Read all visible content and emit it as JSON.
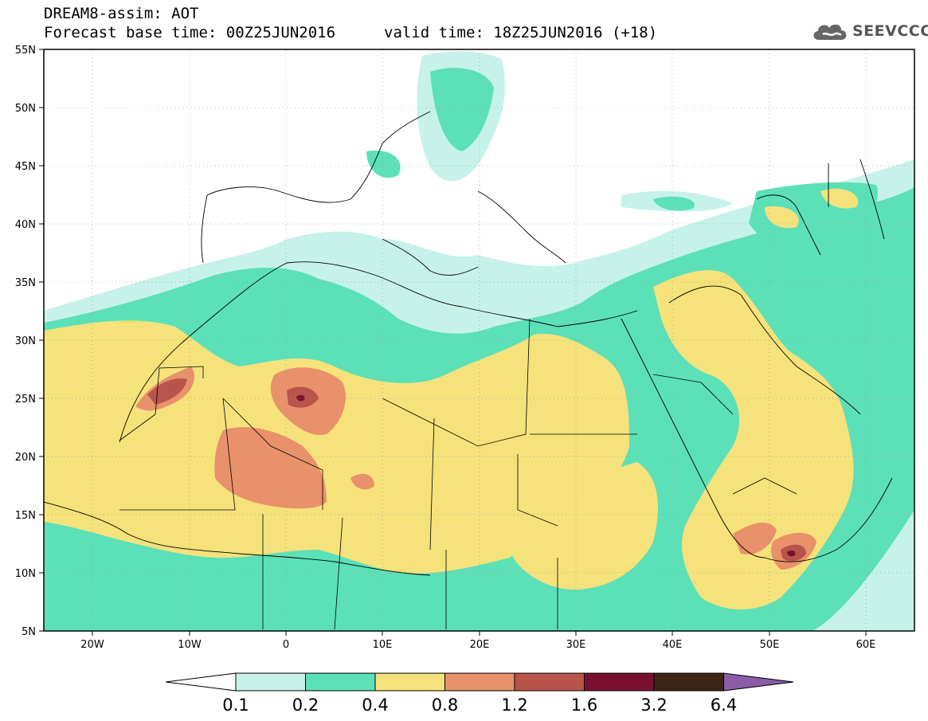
{
  "header": {
    "line1": "DREAM8-assim: AOT",
    "base_time": "Forecast base time: 00Z25JUN2016",
    "valid_time": "valid time: 18Z25JUN2016 (+18)"
  },
  "logo": {
    "text": "SEEVCCC",
    "icon": "cloud-icon"
  },
  "axes": {
    "lat_labels": [
      "55N",
      "50N",
      "45N",
      "40N",
      "35N",
      "30N",
      "25N",
      "20N",
      "15N",
      "10N",
      "5N"
    ],
    "lon_labels": [
      "20W",
      "10W",
      "0",
      "10E",
      "20E",
      "30E",
      "40E",
      "50E",
      "60E"
    ]
  },
  "colorbar": {
    "labels": [
      "0.1",
      "0.2",
      "0.4",
      "0.8",
      "1.2",
      "1.6",
      "3.2",
      "6.4"
    ],
    "colors": [
      "#ffffff",
      "#c6f2ea",
      "#5ce0b8",
      "#f5e27a",
      "#e8916b",
      "#b8544a",
      "#7a1030",
      "#3d2515",
      "#8a5ca8"
    ]
  }
}
